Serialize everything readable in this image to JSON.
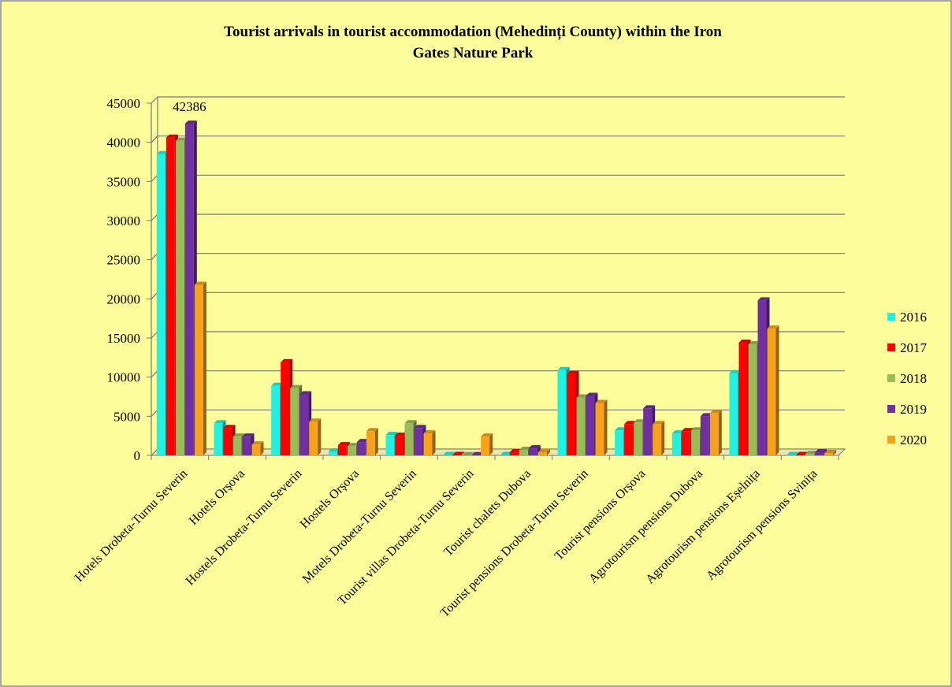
{
  "chart_data": {
    "type": "bar3d",
    "title": [
      "Tourist arrivals in tourist accommodation (Mehedinți County) within the Iron",
      "Gates Nature Park"
    ],
    "categories": [
      "Hotels Drobeta-Turnu Severin",
      "Hotels Orșova",
      "Hostels Drobeta-Turnu Severin",
      "Hostels Orșova",
      "Motels Drobeta-Turnu Severin",
      "Tourist villas Drobeta-Turnu Severin",
      "Tourist chalets Dubova",
      "Tourist pensions Drobeta-Turnu Severin",
      "Tourist pensions Orșova",
      "Agrotourism pensions Dubova",
      "Agrotourism pensions Eșelnița",
      "Agrotourism pensions Svinița"
    ],
    "series": [
      {
        "name": "2016",
        "color": "#22f0e0",
        "values": [
          38500,
          4100,
          8900,
          500,
          2600,
          50,
          50,
          10900,
          3200,
          2800,
          10500,
          50
        ]
      },
      {
        "name": "2017",
        "color": "#ff0000",
        "values": [
          40600,
          3500,
          11900,
          1300,
          2500,
          50,
          400,
          10400,
          4000,
          3100,
          14400,
          50
        ]
      },
      {
        "name": "2018",
        "color": "#9bbb59",
        "values": [
          40200,
          2400,
          8600,
          1200,
          4100,
          30,
          700,
          7400,
          4200,
          3200,
          14200,
          200
        ]
      },
      {
        "name": "2019",
        "color": "#7030a0",
        "values": [
          42386,
          2400,
          7800,
          1700,
          3500,
          30,
          900,
          7600,
          6000,
          5000,
          19800,
          400
        ]
      },
      {
        "name": "2020",
        "color": "#f7a21b",
        "values": [
          21800,
          1400,
          4300,
          3100,
          2800,
          2400,
          400,
          6700,
          4000,
          5400,
          16200,
          300
        ]
      }
    ],
    "ylim": [
      0,
      45000
    ],
    "yticks": [
      0,
      5000,
      10000,
      15000,
      20000,
      25000,
      30000,
      35000,
      40000,
      45000
    ],
    "grid": true,
    "legend": "right"
  }
}
